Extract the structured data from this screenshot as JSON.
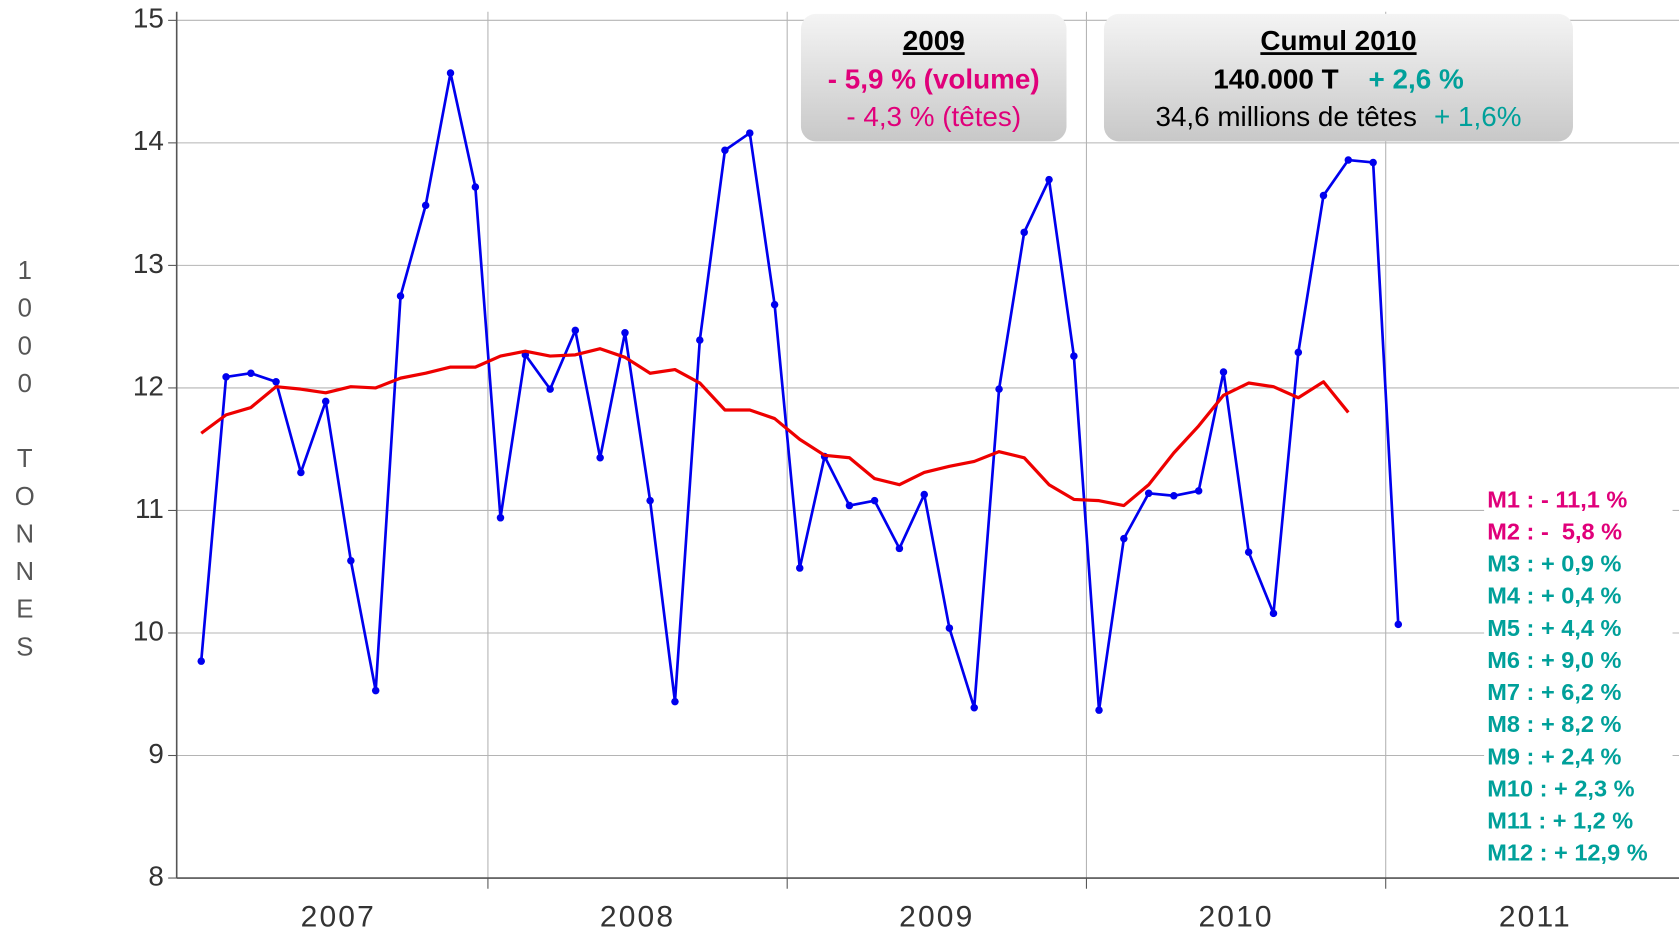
{
  "chart_data": {
    "type": "line",
    "y_label": "1000 TONNES",
    "x": [
      2007.042,
      2007.125,
      2007.208,
      2007.292,
      2007.375,
      2007.458,
      2007.542,
      2007.625,
      2007.708,
      2007.792,
      2007.875,
      2007.958,
      2008.042,
      2008.125,
      2008.208,
      2008.292,
      2008.375,
      2008.458,
      2008.542,
      2008.625,
      2008.708,
      2008.792,
      2008.875,
      2008.958,
      2009.042,
      2009.125,
      2009.208,
      2009.292,
      2009.375,
      2009.458,
      2009.542,
      2009.625,
      2009.708,
      2009.792,
      2009.875,
      2009.958,
      2010.042,
      2010.125,
      2010.208,
      2010.292,
      2010.375,
      2010.458,
      2010.542,
      2010.625,
      2010.708,
      2010.792,
      2010.875,
      2010.958,
      2011.042
    ],
    "series": [
      {
        "color": "#0000ee",
        "markers": true,
        "values": [
          9.77,
          12.09,
          12.12,
          12.05,
          11.31,
          11.89,
          10.59,
          9.53,
          12.75,
          13.49,
          14.57,
          13.64,
          10.94,
          12.27,
          11.99,
          12.47,
          11.43,
          12.45,
          11.08,
          9.44,
          12.39,
          13.94,
          14.08,
          12.68,
          10.53,
          11.44,
          11.04,
          11.08,
          10.69,
          11.13,
          10.04,
          9.39,
          11.99,
          13.27,
          13.7,
          12.26,
          9.37,
          10.77,
          11.14,
          11.12,
          11.16,
          12.13,
          10.66,
          10.16,
          12.29,
          13.57,
          13.86,
          13.84,
          10.07
        ]
      },
      {
        "color": "#ee0000",
        "markers": false,
        "values": [
          11.63,
          11.78,
          11.84,
          12.01,
          11.99,
          11.96,
          12.01,
          12.0,
          12.08,
          12.12,
          12.17,
          12.17,
          12.26,
          12.3,
          12.26,
          12.27,
          12.32,
          12.25,
          12.12,
          12.15,
          12.04,
          11.82,
          11.82,
          11.75,
          11.58,
          11.45,
          11.43,
          11.26,
          11.21,
          11.31,
          11.36,
          11.4,
          11.48,
          11.43,
          11.21,
          11.09,
          11.08,
          11.04,
          11.21,
          11.47,
          11.69,
          11.94,
          12.04,
          12.01,
          11.92,
          12.05,
          11.8,
          null,
          null
        ]
      }
    ],
    "xlim": [
      2006.96,
      2011.98
    ],
    "xticks": [
      2008,
      2009,
      2010,
      2011
    ],
    "xtick_labels": [
      {
        "value": 2007.5,
        "label": "2007"
      },
      {
        "value": 2008.5,
        "label": "2008"
      },
      {
        "value": 2009.5,
        "label": "2009"
      },
      {
        "value": 2010.5,
        "label": "2010"
      },
      {
        "value": 2011.5,
        "label": "2011"
      }
    ],
    "ylim": [
      8,
      15
    ],
    "yticks": [
      8,
      9,
      10,
      11,
      12,
      13,
      14,
      15
    ],
    "grid": true,
    "box_2009": {
      "title": "2009",
      "volume": "- 5,9 % (volume)",
      "volume_color": "#e0007a",
      "heads": "- 4,3 % (têtes)",
      "heads_color": "#e0007a"
    },
    "box_2010": {
      "title": "Cumul 2010",
      "volume": "140.000 T",
      "volume_change": "+ 2,6 %",
      "heads": "34,6 millions de têtes",
      "heads_change": "+ 1,6%",
      "change_color": "#00a09a"
    },
    "monthly": [
      {
        "label": "M1 : - 11,1 %",
        "color": "#e0007a"
      },
      {
        "label": "M2 : -  5,8 %",
        "color": "#e0007a"
      },
      {
        "label": "M3 : + 0,9 %",
        "color": "#00a09a"
      },
      {
        "label": "M4 : + 0,4 %",
        "color": "#00a09a"
      },
      {
        "label": "M5 : + 4,4 %",
        "color": "#00a09a"
      },
      {
        "label": "M6 : + 9,0 %",
        "color": "#00a09a"
      },
      {
        "label": "M7 : + 6,2 %",
        "color": "#00a09a"
      },
      {
        "label": "M8 : + 8,2 %",
        "color": "#00a09a"
      },
      {
        "label": "M9 : + 2,4 %",
        "color": "#00a09a"
      },
      {
        "label": "M10 : + 2,3 %",
        "color": "#00a09a"
      },
      {
        "label": "M11 : + 1,2 %",
        "color": "#00a09a"
      },
      {
        "label": "M12 : + 12,9 %",
        "color": "#00a09a"
      }
    ]
  }
}
